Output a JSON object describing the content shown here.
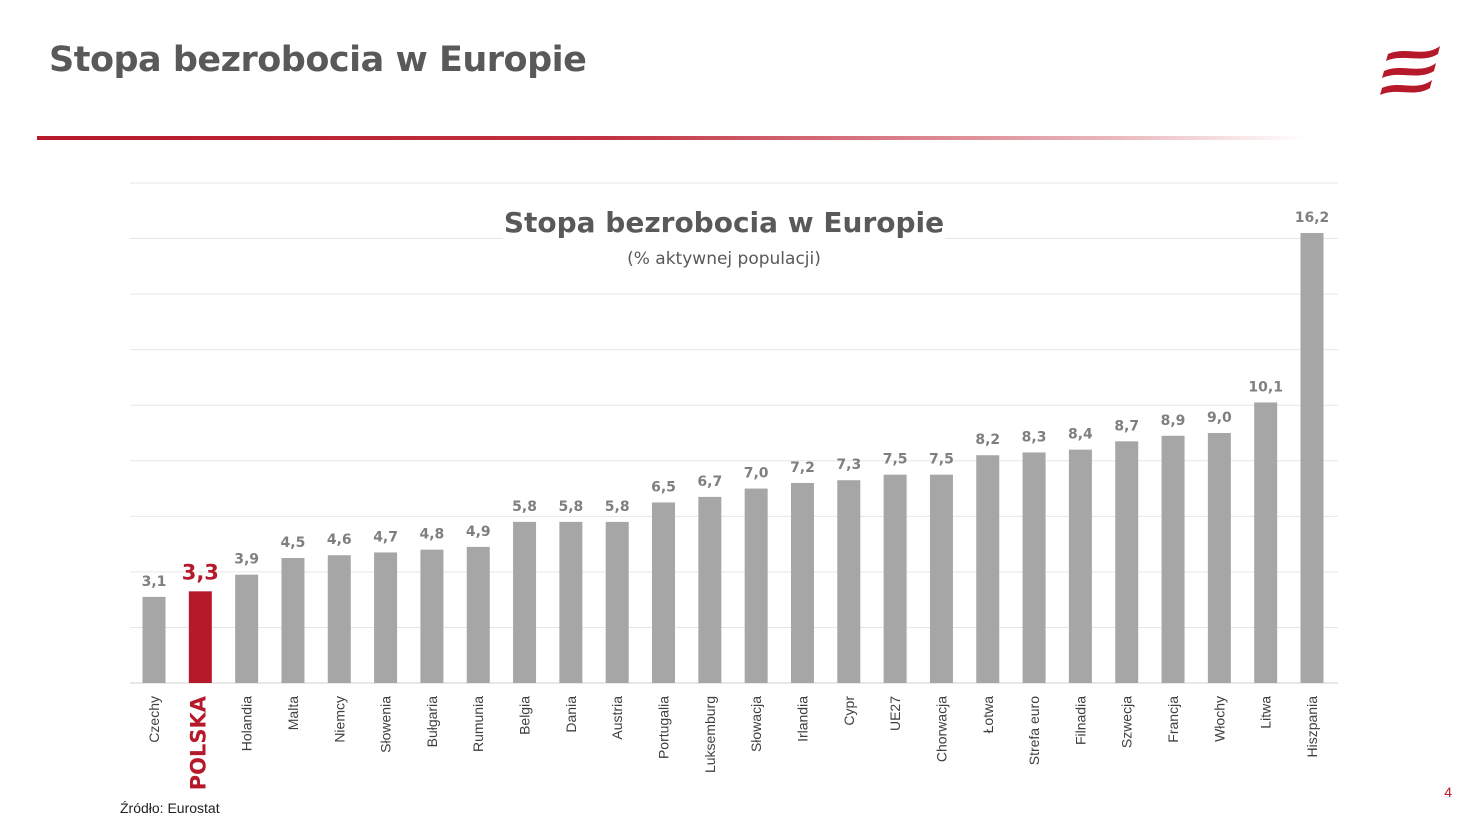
{
  "slide": {
    "title": "Stopa bezrobocia w Europie",
    "page_number": "4",
    "source": "Źródło: Eurostat"
  },
  "logo": {
    "icon": "brand-flag-icon",
    "color": "#b5192a"
  },
  "colors": {
    "bar_default": "#a6a6a6",
    "bar_highlight": "#b5192a",
    "label_default": "#7f7f7f",
    "title_text": "#595959",
    "gridline": "#e6e6e6"
  },
  "chart_data": {
    "type": "bar",
    "title": "Stopa bezrobocia w Europie",
    "subtitle": "(% aktywnej populacji)",
    "categories": [
      "Czechy",
      "POLSKA",
      "Holandia",
      "Malta",
      "Niemcy",
      "Słowenia",
      "Bułgaria",
      "Rumunia",
      "Belgia",
      "Dania",
      "Austria",
      "Portugalia",
      "Luksemburg",
      "Słowacja",
      "Irlandia",
      "Cypr",
      "UE27",
      "Chorwacja",
      "Łotwa",
      "Strefa euro",
      "Filnadia",
      "Szwecja",
      "Francja",
      "Włochy",
      "Litwa",
      "Hiszpania"
    ],
    "values": [
      3.1,
      3.3,
      3.9,
      4.5,
      4.6,
      4.7,
      4.8,
      4.9,
      5.8,
      5.8,
      5.8,
      6.5,
      6.7,
      7.0,
      7.2,
      7.3,
      7.5,
      7.5,
      8.2,
      8.3,
      8.4,
      8.7,
      8.9,
      9.0,
      10.1,
      16.2
    ],
    "value_labels": [
      "3,1",
      "3,3",
      "3,9",
      "4,5",
      "4,6",
      "4,7",
      "4,8",
      "4,9",
      "5,8",
      "5,8",
      "5,8",
      "6,5",
      "6,7",
      "7,0",
      "7,2",
      "7,3",
      "7,5",
      "7,5",
      "8,2",
      "8,3",
      "8,4",
      "8,7",
      "8,9",
      "9,0",
      "10,1",
      "16,2"
    ],
    "highlight": "POLSKA",
    "ylim": [
      0,
      18
    ],
    "grid": true,
    "legend": "none"
  }
}
